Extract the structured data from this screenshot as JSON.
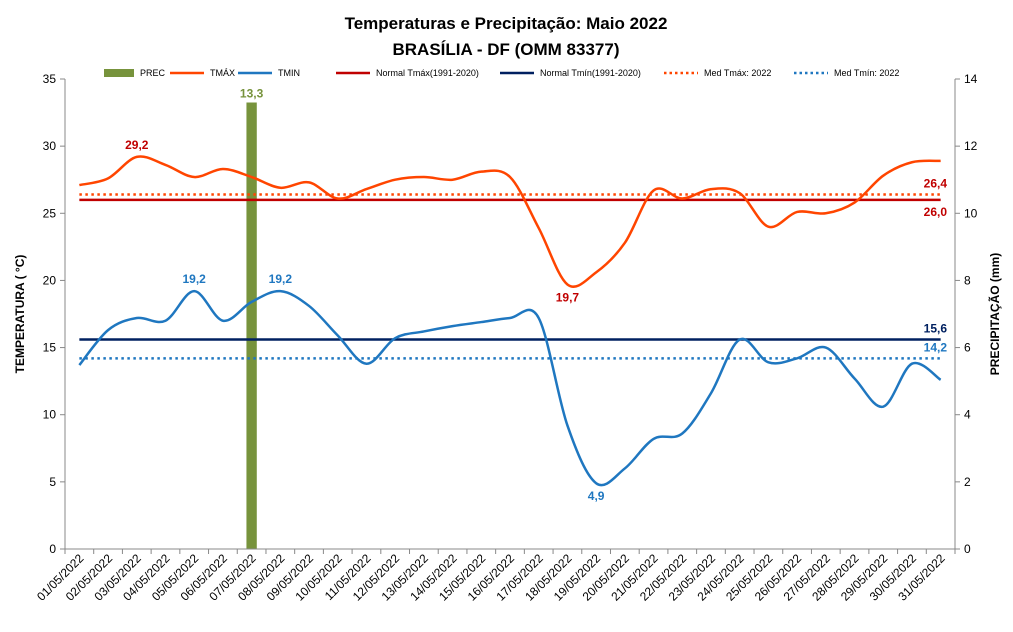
{
  "chart_data": {
    "type": "line",
    "title": "Temperaturas  e  Precipitação:  Maio  2022",
    "subtitle": "BRASÍLIA - DF (OMM 83377)",
    "ylabel_left": "TEMPERATURA  ( °C)",
    "ylabel_right": "PRECIPITAÇÃO  (mm)",
    "ylim_left": [
      0,
      35
    ],
    "yticks_left": [
      0,
      5,
      10,
      15,
      20,
      25,
      30,
      35
    ],
    "ylim_right": [
      0,
      14
    ],
    "yticks_right": [
      0,
      2,
      4,
      6,
      8,
      10,
      12,
      14
    ],
    "grid": false,
    "legend_position": "top",
    "categories": [
      "01/05/2022",
      "02/05/2022",
      "03/05/2022",
      "04/05/2022",
      "05/05/2022",
      "06/05/2022",
      "07/05/2022",
      "08/05/2022",
      "09/05/2022",
      "10/05/2022",
      "11/05/2022",
      "12/05/2022",
      "13/05/2022",
      "14/05/2022",
      "15/05/2022",
      "16/05/2022",
      "17/05/2022",
      "18/05/2022",
      "19/05/2022",
      "20/05/2022",
      "21/05/2022",
      "22/05/2022",
      "23/05/2022",
      "24/05/2022",
      "25/05/2022",
      "26/05/2022",
      "27/05/2022",
      "28/05/2022",
      "29/05/2022",
      "30/05/2022",
      "31/05/2022"
    ],
    "precipitation": {
      "name": "PREC",
      "color": "#77933c",
      "values": [
        0,
        0,
        0,
        0,
        0,
        0,
        13.3,
        0,
        0,
        0,
        0,
        0,
        0,
        0,
        0,
        0,
        0,
        0,
        0,
        0,
        0,
        0,
        0,
        0,
        0,
        0,
        0,
        0,
        0,
        0,
        0
      ]
    },
    "series": [
      {
        "name": "TMÁX",
        "color": "#ff4500",
        "values": [
          27.1,
          27.6,
          29.2,
          28.6,
          27.7,
          28.3,
          27.7,
          26.9,
          27.3,
          26.1,
          26.8,
          27.5,
          27.7,
          27.5,
          28.1,
          27.7,
          23.9,
          19.7,
          20.6,
          22.8,
          26.7,
          26.1,
          26.8,
          26.5,
          24.0,
          25.1,
          25.0,
          25.8,
          27.8,
          28.8,
          28.9
        ]
      },
      {
        "name": "TMIN",
        "color": "#1f77c0",
        "values": [
          13.7,
          16.3,
          17.2,
          17.0,
          19.2,
          17.0,
          18.4,
          19.2,
          18.1,
          15.9,
          13.8,
          15.7,
          16.2,
          16.6,
          16.9,
          17.2,
          17.2,
          9.2,
          4.9,
          6.0,
          8.2,
          8.6,
          11.6,
          15.6,
          13.9,
          14.2,
          15.0,
          12.7,
          10.6,
          13.8,
          12.6
        ]
      }
    ],
    "reference_lines": [
      {
        "name": "Normal Tmáx(1991-2020)",
        "value": 26.0,
        "color": "#c00000",
        "style": "solid"
      },
      {
        "name": "Normal Tmín(1991-2020)",
        "value": 15.6,
        "color": "#002060",
        "style": "solid"
      },
      {
        "name": "Med Tmáx: 2022",
        "value": 26.4,
        "color": "#ff4500",
        "style": "dotted"
      },
      {
        "name": "Med Tmín: 2022",
        "value": 14.2,
        "color": "#1f77c0",
        "style": "dotted"
      }
    ],
    "annotations": [
      {
        "text": "13,3",
        "series": "PREC",
        "index": 6,
        "color": "#77933c"
      },
      {
        "text": "29,2",
        "series": "TMÁX",
        "index": 2,
        "color": "#c00000"
      },
      {
        "text": "19,7",
        "series": "TMÁX",
        "index": 17,
        "color": "#c00000"
      },
      {
        "text": "19,2",
        "series": "TMIN",
        "index": 4,
        "color": "#1f77c0"
      },
      {
        "text": "19,2",
        "series": "TMIN",
        "index": 7,
        "color": "#1f77c0"
      },
      {
        "text": "4,9",
        "series": "TMIN",
        "index": 18,
        "color": "#1f77c0"
      },
      {
        "text": "26,4",
        "series": "Med Tmáx: 2022",
        "color": "#c00000"
      },
      {
        "text": "26,0",
        "series": "Normal Tmáx(1991-2020)",
        "color": "#c00000"
      },
      {
        "text": "15,6",
        "series": "Normal Tmín(1991-2020)",
        "color": "#002060"
      },
      {
        "text": "14,2",
        "series": "Med Tmín: 2022",
        "color": "#1f77c0"
      }
    ]
  }
}
